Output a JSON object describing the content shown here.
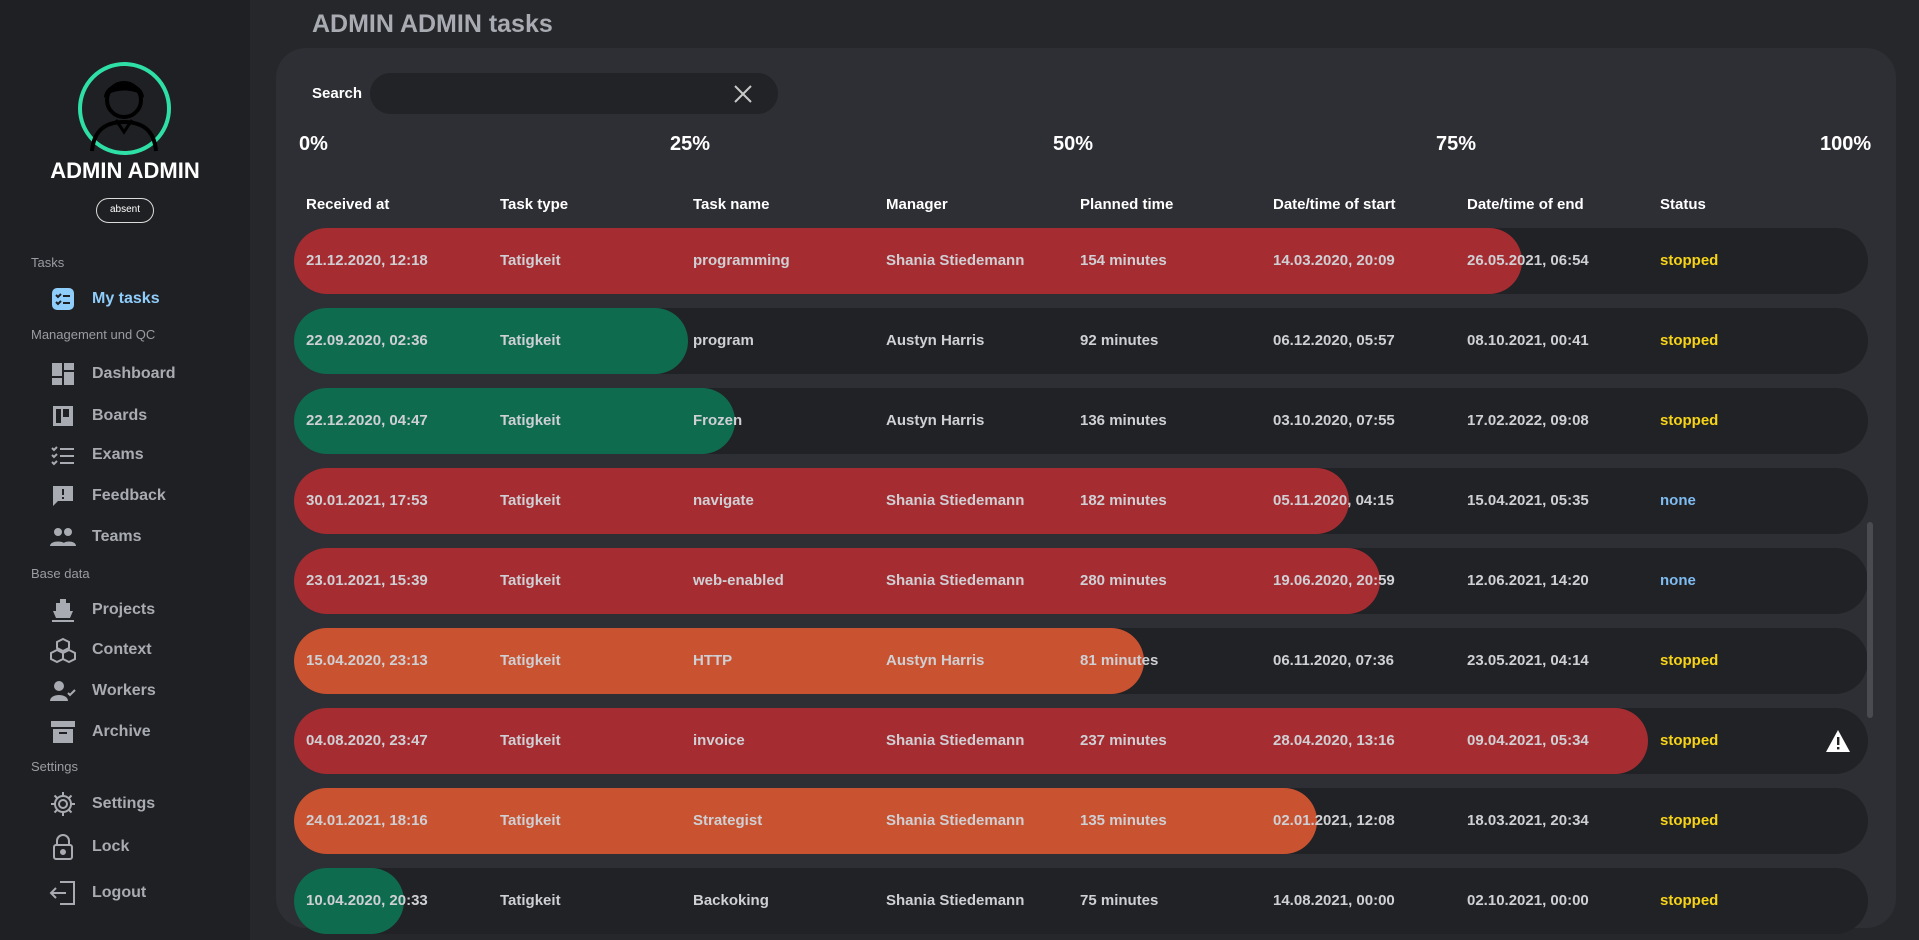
{
  "user": {
    "name": "ADMIN ADMIN",
    "presence": "absent"
  },
  "nav": {
    "section_tasks": "Tasks",
    "my_tasks": "My tasks",
    "section_management": "Management und QC",
    "dashboard": "Dashboard",
    "boards": "Boards",
    "exams": "Exams",
    "feedback": "Feedback",
    "teams": "Teams",
    "section_base": "Base data",
    "projects": "Projects",
    "context": "Context",
    "workers": "Workers",
    "archive": "Archive",
    "section_settings": "Settings",
    "settings": "Settings",
    "lock": "Lock",
    "logout": "Logout"
  },
  "page": {
    "title": "ADMIN ADMIN tasks"
  },
  "search": {
    "label": "Search",
    "value": ""
  },
  "progress_scale": [
    "0%",
    "25%",
    "50%",
    "75%",
    "100%"
  ],
  "columns": [
    "Received at",
    "Task type",
    "Task name",
    "Manager",
    "Planned time",
    "Date/time of start",
    "Date/time of end",
    "Status"
  ],
  "colors": {
    "red": "#a52d32",
    "green": "#0f6b4e",
    "orange": "#c95230",
    "accent": "#2ee0a6"
  },
  "rows": [
    {
      "received": "21.12.2020, 12:18",
      "type": "Tatigkeit",
      "name": "programming",
      "manager": "Shania Stiedemann",
      "planned": "154 minutes",
      "start": "14.03.2020, 20:09",
      "end": "26.05.2021, 06:54",
      "status": "stopped",
      "progress": 0.78,
      "color": "red",
      "warning": false
    },
    {
      "received": "22.09.2020, 02:36",
      "type": "Tatigkeit",
      "name": "program",
      "manager": "Austyn Harris",
      "planned": "92 minutes",
      "start": "06.12.2020, 05:57",
      "end": "08.10.2021, 00:41",
      "status": "stopped",
      "progress": 0.25,
      "color": "green",
      "warning": false
    },
    {
      "received": "22.12.2020, 04:47",
      "type": "Tatigkeit",
      "name": "Frozen",
      "manager": "Austyn Harris",
      "planned": "136 minutes",
      "start": "03.10.2020, 07:55",
      "end": "17.02.2022, 09:08",
      "status": "stopped",
      "progress": 0.28,
      "color": "green",
      "warning": false
    },
    {
      "received": "30.01.2021, 17:53",
      "type": "Tatigkeit",
      "name": "navigate",
      "manager": "Shania Stiedemann",
      "planned": "182 minutes",
      "start": "05.11.2020, 04:15",
      "end": "15.04.2021, 05:35",
      "status": "none",
      "progress": 0.67,
      "color": "red",
      "warning": false
    },
    {
      "received": "23.01.2021, 15:39",
      "type": "Tatigkeit",
      "name": "web-enabled",
      "manager": "Shania Stiedemann",
      "planned": "280 minutes",
      "start": "19.06.2020, 20:59",
      "end": "12.06.2021, 14:20",
      "status": "none",
      "progress": 0.69,
      "color": "red",
      "warning": false
    },
    {
      "received": "15.04.2020, 23:13",
      "type": "Tatigkeit",
      "name": "HTTP",
      "manager": "Austyn Harris",
      "planned": "81 minutes",
      "start": "06.11.2020, 07:36",
      "end": "23.05.2021, 04:14",
      "status": "stopped",
      "progress": 0.54,
      "color": "orange",
      "warning": false
    },
    {
      "received": "04.08.2020, 23:47",
      "type": "Tatigkeit",
      "name": "invoice",
      "manager": "Shania Stiedemann",
      "planned": "237 minutes",
      "start": "28.04.2020, 13:16",
      "end": "09.04.2021, 05:34",
      "status": "stopped",
      "progress": 0.86,
      "color": "red",
      "warning": true
    },
    {
      "received": "24.01.2021, 18:16",
      "type": "Tatigkeit",
      "name": "Strategist",
      "manager": "Shania Stiedemann",
      "planned": "135 minutes",
      "start": "02.01.2021, 12:08",
      "end": "18.03.2021, 20:34",
      "status": "stopped",
      "progress": 0.65,
      "color": "orange",
      "warning": false
    },
    {
      "received": "10.04.2020, 20:33",
      "type": "Tatigkeit",
      "name": "Backoking",
      "manager": "Shania Stiedemann",
      "planned": "75 minutes",
      "start": "14.08.2021, 00:00",
      "end": "02.10.2021, 00:00",
      "status": "stopped",
      "progress": 0.07,
      "color": "green",
      "warning": false
    }
  ]
}
